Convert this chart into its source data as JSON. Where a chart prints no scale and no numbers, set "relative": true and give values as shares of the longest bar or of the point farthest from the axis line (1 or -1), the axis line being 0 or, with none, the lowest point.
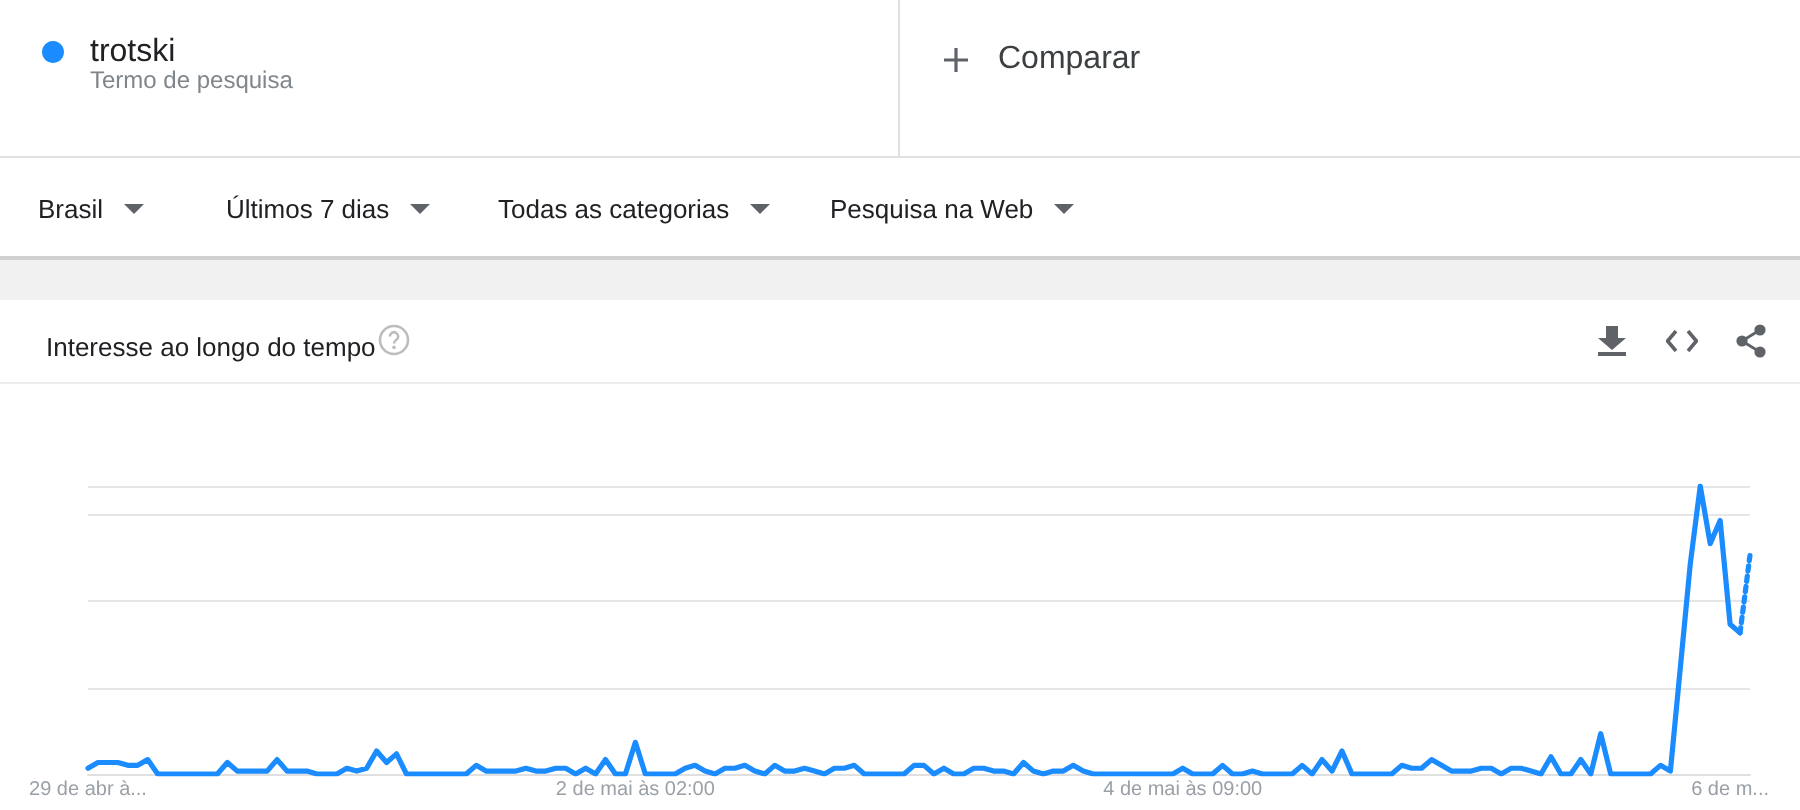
{
  "chart_data": {
    "type": "line",
    "title": "Interesse ao longo do tempo",
    "relative": true,
    "annotations": [
      "Termo de pesquisa",
      "Comparar",
      "Brasil",
      "Últimos 7 dias",
      "Todas as categorias",
      "Pesquisa na Web"
    ],
    "categories": [
      "29 de abr à...",
      null,
      null,
      null,
      null,
      null,
      null,
      null,
      null,
      null,
      null,
      null,
      null,
      null,
      null,
      null,
      null,
      null,
      null,
      null,
      null,
      null,
      null,
      null,
      null,
      null,
      null,
      null,
      null,
      null,
      null,
      null,
      null,
      null,
      null,
      null,
      null,
      null,
      null,
      null,
      null,
      null,
      null,
      null,
      null,
      null,
      null,
      null,
      null,
      null,
      null,
      null,
      null,
      null,
      null,
      "2 de mai às 02:00",
      null,
      null,
      null,
      null,
      null,
      null,
      null,
      null,
      null,
      null,
      null,
      null,
      null,
      null,
      null,
      null,
      null,
      null,
      null,
      null,
      null,
      null,
      null,
      null,
      null,
      null,
      null,
      null,
      null,
      null,
      null,
      null,
      null,
      null,
      null,
      null,
      null,
      null,
      null,
      null,
      null,
      null,
      null,
      null,
      null,
      null,
      null,
      null,
      null,
      null,
      null,
      null,
      null,
      null,
      "4 de mai às 09:00",
      null,
      null,
      null,
      null,
      null,
      null,
      null,
      null,
      null,
      null,
      null,
      null,
      null,
      null,
      null,
      null,
      null,
      null,
      null,
      null,
      null,
      null,
      null,
      null,
      null,
      null,
      null,
      null,
      null,
      null,
      null,
      null,
      null,
      null,
      null,
      null,
      null,
      null,
      null,
      null,
      null,
      null,
      null,
      null,
      null,
      null,
      null,
      null,
      null,
      null,
      null,
      null,
      null,
      null,
      "6 de m...",
      null,
      null
    ],
    "series": [
      {
        "name": "trotski",
        "color": "#1a8cff",
        "values": [
          0.02,
          0.04,
          0.04,
          0.04,
          0.03,
          0.03,
          0.05,
          0,
          0,
          0,
          0,
          0,
          0,
          0,
          0.04,
          0.01,
          0.01,
          0.01,
          0.01,
          0.05,
          0.01,
          0.01,
          0.01,
          0,
          0,
          0,
          0.02,
          0.01,
          0.02,
          0.08,
          0.04,
          0.07,
          0,
          0,
          0,
          0,
          0,
          0,
          0,
          0.03,
          0.01,
          0.01,
          0.01,
          0.01,
          0.02,
          0.01,
          0.01,
          0.02,
          0.02,
          0,
          0.02,
          0,
          0.05,
          0,
          0,
          0.11,
          0,
          0,
          0,
          0,
          0.02,
          0.03,
          0.01,
          0,
          0.02,
          0.02,
          0.03,
          0.01,
          0,
          0.03,
          0.01,
          0.01,
          0.02,
          0.01,
          0,
          0.02,
          0.02,
          0.03,
          0,
          0,
          0,
          0,
          0,
          0.03,
          0.03,
          0,
          0.02,
          0,
          0,
          0.02,
          0.02,
          0.01,
          0.01,
          0,
          0.04,
          0.01,
          0,
          0.01,
          0.01,
          0.03,
          0.01,
          0,
          0,
          0,
          0,
          0,
          0,
          0,
          0,
          0,
          0.02,
          0,
          0,
          0,
          0.03,
          0,
          0,
          0.01,
          0,
          0,
          0,
          0,
          0.03,
          0,
          0.05,
          0.01,
          0.08,
          0,
          0,
          0,
          0,
          0,
          0.03,
          0.02,
          0.02,
          0.05,
          0.03,
          0.01,
          0.01,
          0.01,
          0.02,
          0.02,
          0,
          0.02,
          0.02,
          0.01,
          0,
          0.06,
          0,
          0,
          0.05,
          0,
          0.14,
          0,
          0,
          0,
          0,
          0,
          0.03,
          0.01,
          0.37,
          0.73,
          1,
          0.8,
          0.88,
          0.52,
          0.49,
          null
        ]
      },
      {
        "color": "#1a8cff",
        "line_style": "dotted",
        "values": [
          null,
          null,
          null,
          null,
          null,
          null,
          null,
          null,
          null,
          null,
          null,
          null,
          null,
          null,
          null,
          null,
          null,
          null,
          null,
          null,
          null,
          null,
          null,
          null,
          null,
          null,
          null,
          null,
          null,
          null,
          null,
          null,
          null,
          null,
          null,
          null,
          null,
          null,
          null,
          null,
          null,
          null,
          null,
          null,
          null,
          null,
          null,
          null,
          null,
          null,
          null,
          null,
          null,
          null,
          null,
          null,
          null,
          null,
          null,
          null,
          null,
          null,
          null,
          null,
          null,
          null,
          null,
          null,
          null,
          null,
          null,
          null,
          null,
          null,
          null,
          null,
          null,
          null,
          null,
          null,
          null,
          null,
          null,
          null,
          null,
          null,
          null,
          null,
          null,
          null,
          null,
          null,
          null,
          null,
          null,
          null,
          null,
          null,
          null,
          null,
          null,
          null,
          null,
          null,
          null,
          null,
          null,
          null,
          null,
          null,
          null,
          null,
          null,
          null,
          null,
          null,
          null,
          null,
          null,
          null,
          null,
          null,
          null,
          null,
          null,
          null,
          null,
          null,
          null,
          null,
          null,
          null,
          null,
          null,
          null,
          null,
          null,
          null,
          null,
          null,
          null,
          null,
          null,
          null,
          null,
          null,
          null,
          null,
          null,
          null,
          null,
          null,
          null,
          null,
          null,
          null,
          null,
          null,
          null,
          null,
          null,
          null,
          null,
          null,
          null,
          null,
          0.49,
          0.76
        ]
      }
    ],
    "grid": "y",
    "legend": "top left"
  }
}
